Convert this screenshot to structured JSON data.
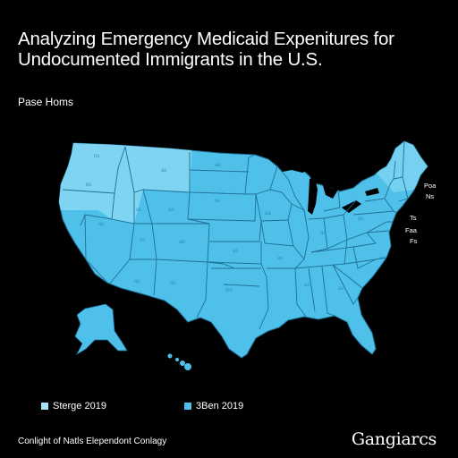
{
  "title": {
    "line1": "Analyzing Emergency Medicaid Expenitures for",
    "line2": "Undocumented Immigrants in the U.S."
  },
  "subtitle": "Pase Homs",
  "map": {
    "fill_main": "#4fc0ea",
    "fill_light": "#7fd4f2",
    "border_color": "#1f6f96",
    "east_labels": [
      "Poa",
      "Ns",
      "Ts",
      "Faa",
      "Fs"
    ]
  },
  "legend": [
    {
      "label": "Sterge 2019",
      "color": "#a8e0f5"
    },
    {
      "label": "3Ben 2019",
      "color": "#4fc0ea"
    }
  ],
  "footer": "Conlight of Natls Elependont Conlagy",
  "logo": "Gangiarcs"
}
